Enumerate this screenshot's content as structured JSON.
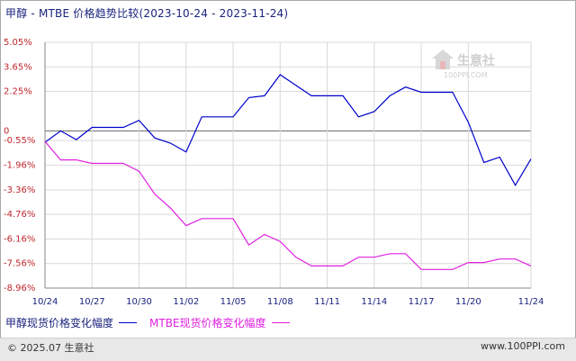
{
  "title": "甲醇 - MTBE 价格趋势比较(2023-10-24 - 2023-11-24)",
  "footer": {
    "copyright": "© 2025.07 生意社",
    "site": "www.100PPI.com"
  },
  "watermark": {
    "name": "生意社",
    "url": "100PPI.COM"
  },
  "colors": {
    "methanol": "#0000cc",
    "mtbe": "#e020e0",
    "ytick": "#c0262d",
    "xtick": "#1a237e",
    "grid": "#d9d9d9",
    "zero": "#666666"
  },
  "chart_data": {
    "type": "line",
    "title": "甲醇 - MTBE 价格趋势比较(2023-10-24 - 2023-11-24)",
    "xlabel": "",
    "ylabel": "",
    "ylim": [
      -8.96,
      5.05
    ],
    "yticks": [
      5.05,
      3.65,
      2.25,
      0,
      -0.55,
      -1.96,
      -3.36,
      -4.76,
      -6.16,
      -7.56,
      -8.96
    ],
    "ytick_labels": [
      "5.05%",
      "3.65%",
      "2.25%",
      "0",
      "-0.55%",
      "-1.96%",
      "-3.36%",
      "-4.76%",
      "-6.16%",
      "-7.56%",
      "-8.96%"
    ],
    "x_tick_labels": [
      "10/24",
      "10/27",
      "10/30",
      "11/02",
      "11/05",
      "11/08",
      "11/11",
      "11/14",
      "11/17",
      "11/20",
      "11/24"
    ],
    "x_tick_day_index": [
      0,
      3,
      6,
      9,
      12,
      15,
      18,
      21,
      24,
      27,
      31
    ],
    "x_days": [
      0,
      1,
      2,
      3,
      5,
      6,
      7,
      8,
      9,
      10,
      11,
      12,
      13,
      14,
      15,
      16,
      17,
      18,
      19,
      20,
      21,
      22,
      23,
      24,
      25,
      26,
      27,
      28,
      29,
      30,
      31
    ],
    "legend_position": "bottom-left",
    "grid": true,
    "series": [
      {
        "name": "甲醇现货价格变化幅度",
        "color": "#0000cc",
        "values": [
          -0.65,
          0.0,
          -0.5,
          0.2,
          0.2,
          0.6,
          -0.4,
          -0.7,
          -1.2,
          0.8,
          0.8,
          0.8,
          1.9,
          2.0,
          3.2,
          2.6,
          2.0,
          2.0,
          2.0,
          0.8,
          1.1,
          2.0,
          2.5,
          2.2,
          2.2,
          2.2,
          0.5,
          -1.8,
          -1.5,
          -3.1,
          -1.6
        ]
      },
      {
        "name": "MTBE现货价格变化幅度",
        "color": "#e020e0",
        "values": [
          -0.6,
          -1.65,
          -1.65,
          -1.85,
          -1.85,
          -2.3,
          -3.6,
          -4.4,
          -5.4,
          -5.0,
          -5.0,
          -5.0,
          -6.5,
          -5.9,
          -6.3,
          -7.2,
          -7.7,
          -7.7,
          -7.7,
          -7.2,
          -7.2,
          -7.0,
          -7.0,
          -7.9,
          -7.9,
          -7.9,
          -7.5,
          -7.5,
          -7.3,
          -7.3,
          -7.7
        ]
      }
    ]
  }
}
